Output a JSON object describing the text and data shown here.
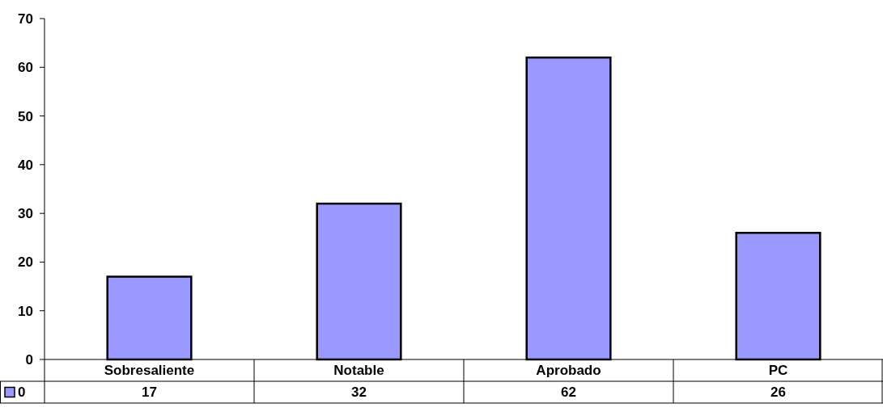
{
  "chart_data": {
    "type": "bar",
    "categories": [
      "Sobresaliente",
      "Notable",
      "Aprobado",
      "PC"
    ],
    "series": [
      {
        "name": "0",
        "color": "#9999ff",
        "values": [
          17,
          32,
          62,
          26
        ]
      }
    ],
    "ylim": [
      0,
      70
    ],
    "yticks": [
      0,
      10,
      20,
      30,
      40,
      50,
      60,
      70
    ],
    "data_labels": true,
    "legend": "bottom",
    "grid": false
  }
}
